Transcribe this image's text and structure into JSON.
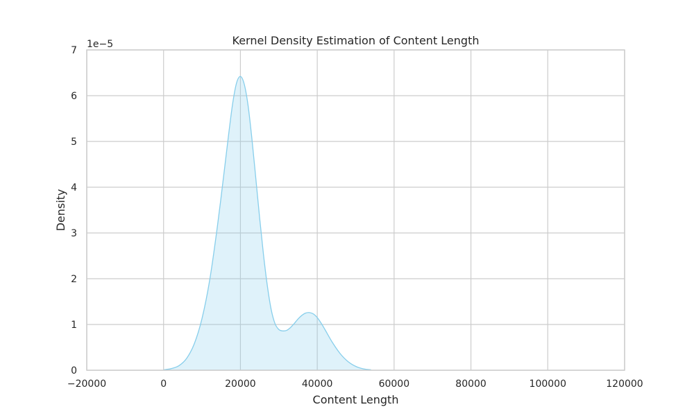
{
  "chart_data": {
    "type": "area",
    "title": "Kernel Density Estimation of Content Length",
    "xlabel": "Content Length",
    "ylabel": "Density",
    "y_offset_label": "1e−5",
    "xlim": [
      -20000,
      120000
    ],
    "ylim": [
      0,
      7e-05
    ],
    "x_ticks": [
      -20000,
      0,
      20000,
      40000,
      60000,
      80000,
      100000,
      120000
    ],
    "x_tick_labels": [
      "−20000",
      "0",
      "20000",
      "40000",
      "60000",
      "80000",
      "100000",
      "120000"
    ],
    "y_ticks": [
      0,
      1e-05,
      2e-05,
      3e-05,
      4e-05,
      5e-05,
      6e-05,
      7e-05
    ],
    "y_tick_labels": [
      "0",
      "1",
      "2",
      "3",
      "4",
      "5",
      "6",
      "7"
    ],
    "grid": true,
    "colors": {
      "line": "#87ceeb",
      "fill": "#87ceeb",
      "fill_opacity": 0.27,
      "grid": "#cccccc",
      "text": "#262626"
    },
    "series": [
      {
        "x": [
          0,
          2000,
          4000,
          6000,
          8000,
          10000,
          12000,
          14000,
          16000,
          17000,
          18000,
          19000,
          20000,
          21000,
          22000,
          23000,
          24000,
          25000,
          26000,
          27000,
          28000,
          29000,
          30000,
          31000,
          32000,
          33000,
          34000,
          35000,
          36000,
          37000,
          38000,
          39000,
          40000,
          41000,
          42000,
          44000,
          46000,
          48000,
          50000,
          52000,
          54000
        ],
        "y": [
          1e-07,
          3.5e-07,
          1e-06,
          2.6e-06,
          5.8e-06,
          1.13e-05,
          1.97e-05,
          3.14e-05,
          4.5e-05,
          5.2e-05,
          5.84e-05,
          6.28e-05,
          6.42e-05,
          6.25e-05,
          5.78e-05,
          5.05e-05,
          4.2e-05,
          3.33e-05,
          2.53e-05,
          1.85e-05,
          1.33e-05,
          1.02e-05,
          8.9e-06,
          8.6e-06,
          8.7e-06,
          9.3e-06,
          1.02e-05,
          1.12e-05,
          1.2e-05,
          1.25e-05,
          1.26e-05,
          1.23e-05,
          1.15e-05,
          1.03e-05,
          8.9e-06,
          6e-06,
          3.6e-06,
          1.9e-06,
          8.5e-07,
          3e-07,
          1e-07
        ]
      }
    ]
  }
}
